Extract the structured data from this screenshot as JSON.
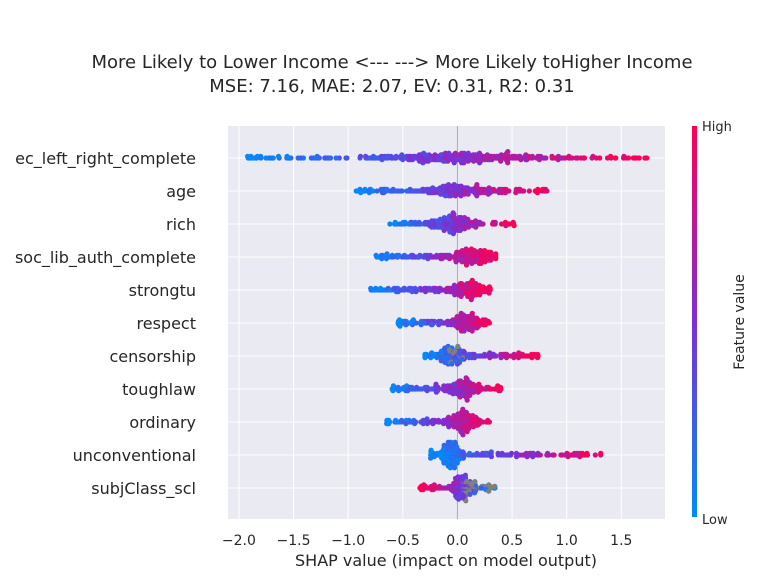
{
  "chart_data": {
    "type": "scatter",
    "subtype": "shap-beeswarm",
    "title": "More Likely to Lower Income <---   ---> More Likely toHigher Income",
    "subtitle": "MSE: 7.16, MAE: 2.07, EV: 0.31, R2: 0.31",
    "xlabel": "SHAP value (impact on model output)",
    "xlim": [
      -2.1,
      1.9
    ],
    "xticks": [
      "−2.0",
      "−1.5",
      "−1.0",
      "−0.5",
      "0.0",
      "0.5",
      "1.0",
      "1.5"
    ],
    "xtick_values": [
      -2.0,
      -1.5,
      -1.0,
      -0.5,
      0.0,
      0.5,
      1.0,
      1.5
    ],
    "grid": true,
    "colorbar": {
      "label": "Feature value",
      "high": "High",
      "low": "Low",
      "low_color": "#008bfb",
      "high_color": "#ff0052",
      "mid_color": "#7b2fd6",
      "missing_color": "#7f7f7f"
    },
    "features": [
      {
        "name": "ec_left_right_complete",
        "min": -1.95,
        "max": 1.75,
        "low_side": "negative",
        "core": 0.0,
        "spread": 0.9
      },
      {
        "name": "age",
        "min": -0.95,
        "max": 0.82,
        "low_side": "negative",
        "core": -0.05,
        "spread": 0.45
      },
      {
        "name": "rich",
        "min": -0.62,
        "max": 0.55,
        "low_side": "negative",
        "core": -0.05,
        "spread": 0.3
      },
      {
        "name": "soc_lib_auth_complete",
        "min": -0.75,
        "max": 0.35,
        "low_side": "negative",
        "core": 0.15,
        "spread": 0.3
      },
      {
        "name": "strongtu",
        "min": -0.8,
        "max": 0.3,
        "low_side": "negative",
        "core": 0.1,
        "spread": 0.25
      },
      {
        "name": "respect",
        "min": -0.55,
        "max": 0.3,
        "low_side": "negative",
        "core": 0.1,
        "spread": 0.2
      },
      {
        "name": "censorship",
        "min": -0.3,
        "max": 0.75,
        "low_side": "negative",
        "core": -0.05,
        "spread": 0.2
      },
      {
        "name": "toughlaw",
        "min": -0.6,
        "max": 0.4,
        "low_side": "negative",
        "core": 0.05,
        "spread": 0.2
      },
      {
        "name": "ordinary",
        "min": -0.65,
        "max": 0.3,
        "low_side": "negative",
        "core": 0.05,
        "spread": 0.2
      },
      {
        "name": "unconventional",
        "min": -0.25,
        "max": 1.35,
        "low_side": "negative",
        "core": -0.05,
        "spread": 0.15
      },
      {
        "name": "subjClass_scl",
        "min": -0.35,
        "max": 0.35,
        "low_side": "positive",
        "core": 0.05,
        "spread": 0.15
      }
    ]
  }
}
